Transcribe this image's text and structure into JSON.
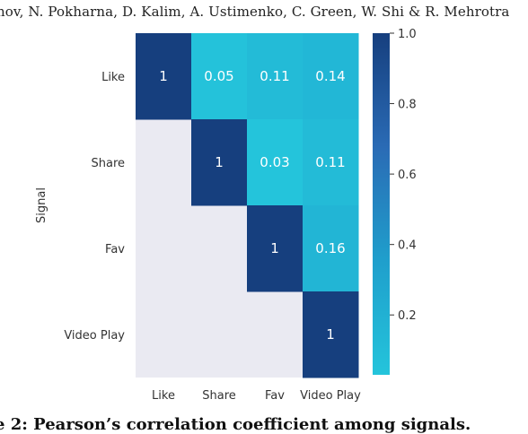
{
  "header": {
    "authors": "nov, N. Pokharna, D. Kalim, A. Ustimenko, C. Green, W. Shi & R. Mehrotra"
  },
  "caption": {
    "text": "e 2: Pearson’s correlation coefficient among signals."
  },
  "chart_data": {
    "type": "heatmap",
    "title": "",
    "xlabel": "",
    "ylabel": "Signal",
    "x_categories": [
      "Like",
      "Share",
      "Fav",
      "Video Play"
    ],
    "y_categories": [
      "Like",
      "Share",
      "Fav",
      "Video Play"
    ],
    "mask": "lower-triangle",
    "values": [
      [
        1,
        0.05,
        0.11,
        0.14
      ],
      [
        null,
        1,
        0.03,
        0.11
      ],
      [
        null,
        null,
        1,
        0.16
      ],
      [
        null,
        null,
        null,
        1
      ]
    ],
    "cell_labels": [
      [
        "1",
        "0.05",
        "0.11",
        "0.14"
      ],
      [
        "",
        "1",
        "0.03",
        "0.11"
      ],
      [
        "",
        "",
        "1",
        "0.16"
      ],
      [
        "",
        "",
        "",
        "1"
      ]
    ],
    "colorbar": {
      "range": [
        0.03,
        1.0
      ],
      "ticks": [
        0.2,
        0.4,
        0.6,
        0.8,
        1.0
      ],
      "tick_labels": [
        "0.2",
        "0.4",
        "0.6",
        "0.8",
        "1.0"
      ],
      "colormap": [
        "#24c4db",
        "#1f9fcc",
        "#2a6bb5",
        "#163f7e"
      ]
    },
    "masked_color": "#eaeaf2",
    "grid": false,
    "legend": "colorbar-right"
  }
}
